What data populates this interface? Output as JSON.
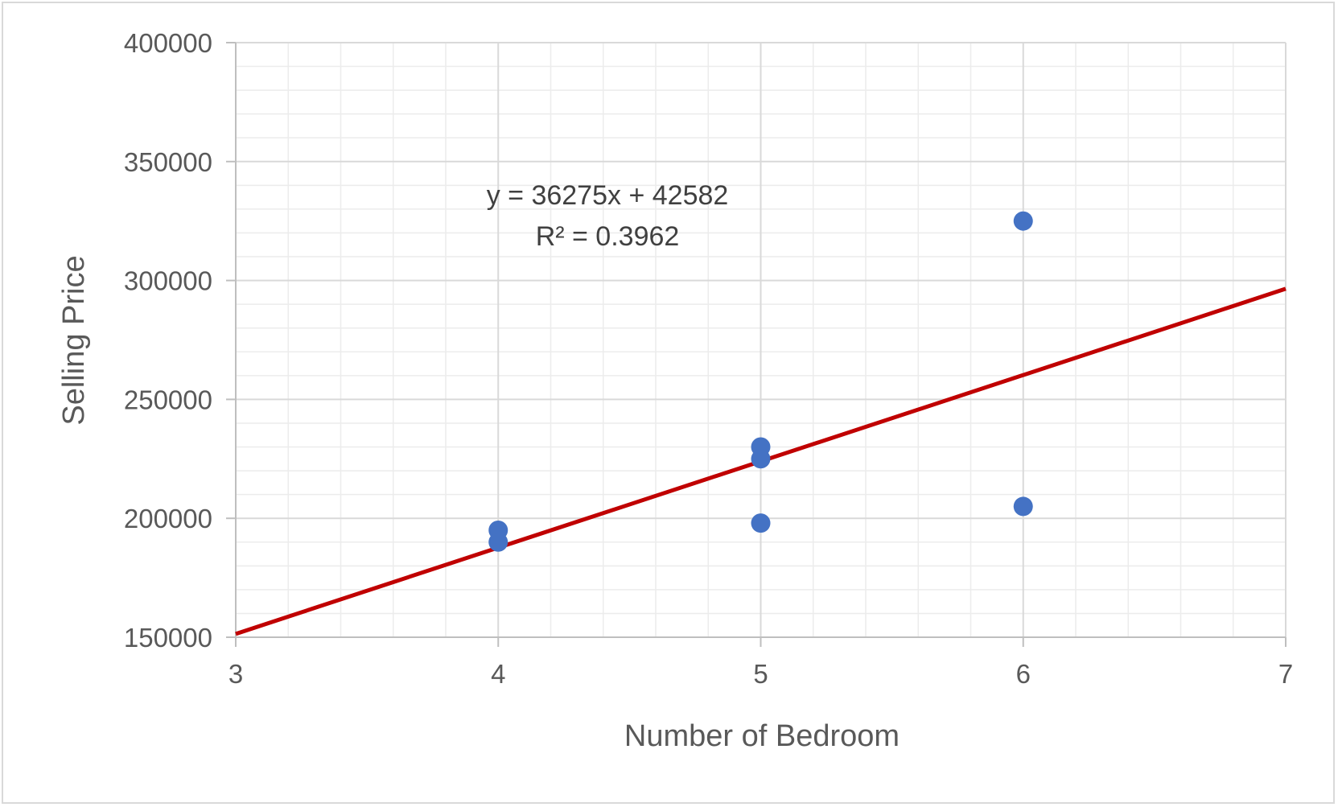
{
  "chart_data": {
    "type": "scatter",
    "title": "",
    "xlabel": "Number of Bedroom",
    "ylabel": "Selling Price",
    "xlim": [
      3,
      7
    ],
    "ylim": [
      150000,
      400000
    ],
    "x_ticks": [
      "3",
      "4",
      "5",
      "6",
      "7"
    ],
    "y_ticks": [
      "150000",
      "200000",
      "250000",
      "300000",
      "350000",
      "400000"
    ],
    "grid": true,
    "legend": "none",
    "series": [
      {
        "color": "#4472c4",
        "points": [
          {
            "x": 4,
            "y": 195000
          },
          {
            "x": 4,
            "y": 190000
          },
          {
            "x": 5,
            "y": 230000
          },
          {
            "x": 5,
            "y": 225000
          },
          {
            "x": 5,
            "y": 198000
          },
          {
            "x": 6,
            "y": 325000
          },
          {
            "x": 6,
            "y": 205000
          }
        ]
      }
    ],
    "trendline": {
      "color": "#c00000",
      "slope": 36275,
      "intercept": 42582,
      "equation": "y = 36275x + 42582",
      "r_squared": "R² = 0.3962"
    }
  }
}
